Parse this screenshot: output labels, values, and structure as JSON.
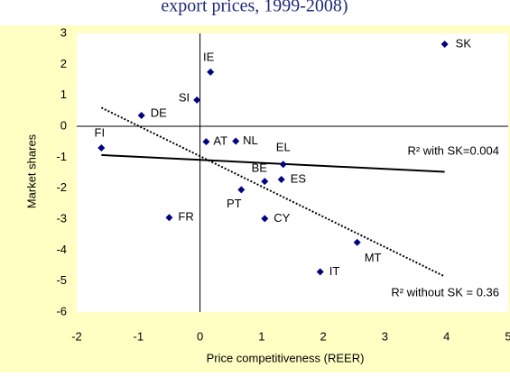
{
  "chart_data": {
    "type": "scatter",
    "title": "export prices, 1999-2008)",
    "x_label": "Price competitiveness (REER)",
    "y_label": "Market shares",
    "xlim": [
      -2,
      5
    ],
    "xticks": [
      -2,
      -1,
      0,
      1,
      2,
      3,
      4,
      5
    ],
    "ylim": [
      -6,
      3
    ],
    "yticks": [
      -6,
      -5,
      -4,
      -3,
      -2,
      -1,
      0,
      1,
      2,
      3
    ],
    "grid": false,
    "series": [
      {
        "color": "#000080",
        "labels": [
          "SK",
          "IE",
          "SI",
          "DE",
          "FI",
          "AT",
          "NL",
          "EL",
          "BE",
          "ES",
          "PT",
          "FR",
          "CY",
          "MT",
          "IT"
        ],
        "x": [
          3.97,
          0.17,
          -0.05,
          -0.95,
          -1.6,
          0.1,
          0.58,
          1.35,
          1.05,
          1.32,
          0.67,
          -0.5,
          1.05,
          2.55,
          1.95
        ],
        "values": [
          2.65,
          1.75,
          0.85,
          0.35,
          -0.7,
          -0.5,
          -0.48,
          -1.23,
          -1.78,
          -1.72,
          -2.05,
          -2.95,
          -2.98,
          -3.75,
          -4.7
        ]
      }
    ],
    "trend_lines": [
      {
        "label": "R² with SK=0.004",
        "style": "solid",
        "x": [
          -1.6,
          3.97
        ],
        "values": [
          -0.93,
          -1.47
        ]
      },
      {
        "label": "R² without SK = 0.36",
        "style": "dotted",
        "x": [
          -1.6,
          3.97
        ],
        "values": [
          0.6,
          -4.85
        ]
      }
    ]
  }
}
